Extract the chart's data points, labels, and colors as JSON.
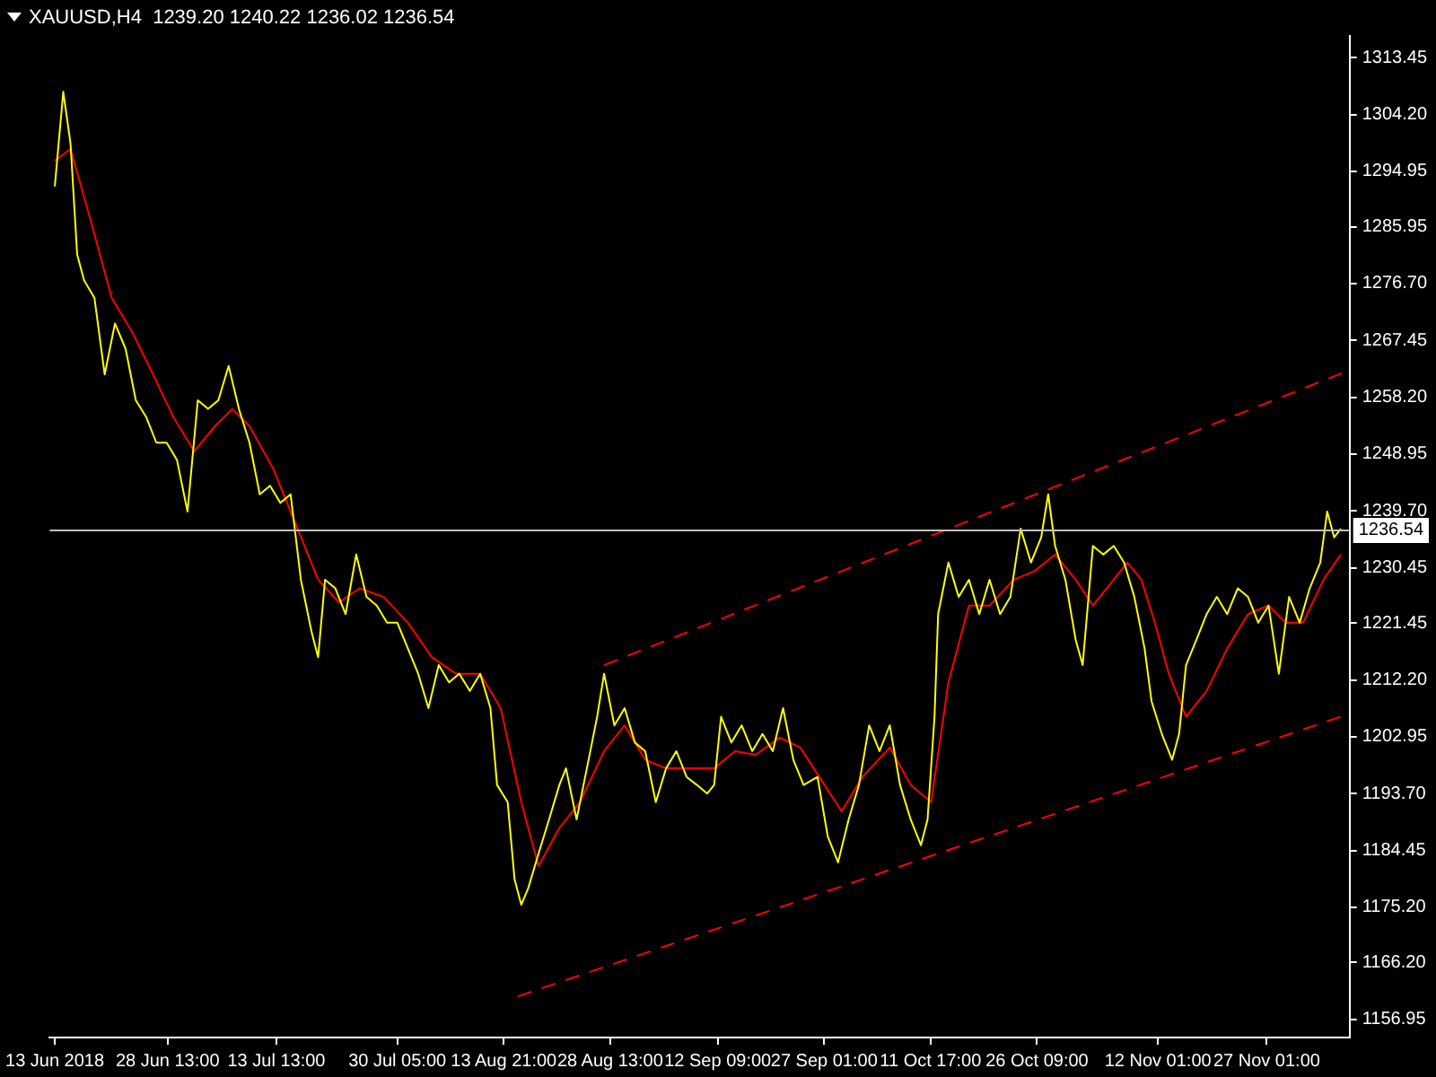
{
  "chart_data": {
    "type": "line",
    "title": "XAUUSD,H4  1239.20 1240.22 1236.02 1236.54",
    "xlim": [
      "2018-06-12T07:00",
      "2018-12-08T11:00"
    ],
    "xticks": [
      {
        "value": "2018-06-13T00:00",
        "label": "13 Jun 2018"
      },
      {
        "value": "2018-06-28T13:00",
        "label": "28 Jun 13:00"
      },
      {
        "value": "2018-07-13T13:00",
        "label": "13 Jul 13:00"
      },
      {
        "value": "2018-07-30T05:00",
        "label": "30 Jul 05:00"
      },
      {
        "value": "2018-08-13T21:00",
        "label": "13 Aug 21:00"
      },
      {
        "value": "2018-08-28T13:00",
        "label": "28 Aug 13:00"
      },
      {
        "value": "2018-09-12T09:00",
        "label": "12 Sep 09:00"
      },
      {
        "value": "2018-09-27T01:00",
        "label": "27 Sep 01:00"
      },
      {
        "value": "2018-10-11T17:00",
        "label": "11 Oct 17:00"
      },
      {
        "value": "2018-10-26T09:00",
        "label": "26 Oct 09:00"
      },
      {
        "value": "2018-11-12T01:00",
        "label": "12 Nov 01:00"
      },
      {
        "value": "2018-11-27T01:00",
        "label": "27 Nov 01:00"
      }
    ],
    "ylim": [
      1154.0,
      1317.0
    ],
    "yticks": [
      {
        "value": 1313.45,
        "label": "1313.45"
      },
      {
        "value": 1304.2,
        "label": "1304.20"
      },
      {
        "value": 1294.95,
        "label": "1294.95"
      },
      {
        "value": 1285.95,
        "label": "1285.95"
      },
      {
        "value": 1276.7,
        "label": "1276.70"
      },
      {
        "value": 1267.45,
        "label": "1267.45"
      },
      {
        "value": 1258.2,
        "label": "1258.20"
      },
      {
        "value": 1248.95,
        "label": "1248.95"
      },
      {
        "value": 1239.7,
        "label": "1239.70"
      },
      {
        "value": 1230.45,
        "label": "1230.45"
      },
      {
        "value": 1221.45,
        "label": "1221.45"
      },
      {
        "value": 1212.2,
        "label": "1212.20"
      },
      {
        "value": 1202.95,
        "label": "1202.95"
      },
      {
        "value": 1193.7,
        "label": "1193.70"
      },
      {
        "value": 1184.45,
        "label": "1184.45"
      },
      {
        "value": 1175.2,
        "label": "1175.20"
      },
      {
        "value": 1166.2,
        "label": "1166.20"
      },
      {
        "value": 1156.95,
        "label": "1156.95"
      }
    ],
    "grid": false,
    "legend": false,
    "marker": "none",
    "series": [
      {
        "color": "#ffff00",
        "x": [
          "2018-06-13T00:00",
          "2018-06-14T04:00",
          "2018-06-15T04:00",
          "2018-06-16T02:00",
          "2018-06-17T01:00",
          "2018-06-18T11:00",
          "2018-06-19T21:00",
          "2018-06-21T07:00",
          "2018-06-22T18:00",
          "2018-06-24T04:00",
          "2018-06-25T14:00",
          "2018-06-27T00:00",
          "2018-06-28T10:00",
          "2018-06-29T20:00",
          "2018-07-01T07:00",
          "2018-07-02T17:00",
          "2018-07-04T03:00",
          "2018-07-05T13:00",
          "2018-07-06T23:00",
          "2018-07-08T09:00",
          "2018-07-09T20:00",
          "2018-07-11T06:00",
          "2018-07-12T16:00",
          "2018-07-14T02:00",
          "2018-07-15T12:00",
          "2018-07-16T22:00",
          "2018-07-18T09:00",
          "2018-07-19T07:00",
          "2018-07-20T06:00",
          "2018-07-21T16:00",
          "2018-07-23T02:00",
          "2018-07-24T13:00",
          "2018-07-25T23:00",
          "2018-07-27T09:00",
          "2018-07-28T19:00",
          "2018-07-30T05:00",
          "2018-07-31T16:00",
          "2018-08-02T02:00",
          "2018-08-03T12:00",
          "2018-08-04T22:00",
          "2018-08-06T08:00",
          "2018-08-07T18:00",
          "2018-08-09T05:00",
          "2018-08-10T15:00",
          "2018-08-12T01:00",
          "2018-08-12T23:00",
          "2018-08-14T10:00",
          "2018-08-15T09:00",
          "2018-08-16T07:00",
          "2018-08-17T06:00",
          "2018-08-18T16:00",
          "2018-08-20T03:00",
          "2018-08-21T13:00",
          "2018-08-22T11:00",
          "2018-08-23T22:00",
          "2018-08-25T08:00",
          "2018-08-26T18:00",
          "2018-08-27T17:00",
          "2018-08-29T03:00",
          "2018-08-30T13:00",
          "2018-08-31T23:00",
          "2018-09-02T09:00",
          "2018-09-03T20:00",
          "2018-09-05T06:00",
          "2018-09-06T16:00",
          "2018-09-08T02:00",
          "2018-09-09T12:00",
          "2018-09-10T22:00",
          "2018-09-11T21:00",
          "2018-09-12T20:00",
          "2018-09-14T06:00",
          "2018-09-15T16:00",
          "2018-09-17T03:00",
          "2018-09-18T13:00",
          "2018-09-19T23:00",
          "2018-09-21T09:00",
          "2018-09-22T19:00",
          "2018-09-24T05:00",
          "2018-09-26T03:00",
          "2018-09-27T13:00",
          "2018-09-28T23:00",
          "2018-09-30T10:00",
          "2018-10-01T20:00",
          "2018-10-03T06:00",
          "2018-10-04T16:00",
          "2018-10-06T02:00",
          "2018-10-07T12:00",
          "2018-10-08T23:00",
          "2018-10-10T09:00",
          "2018-10-11T07:00",
          "2018-10-12T06:00",
          "2018-10-12T18:00",
          "2018-10-14T04:00",
          "2018-10-15T14:00",
          "2018-10-17T00:00",
          "2018-10-18T10:00",
          "2018-10-19T20:00",
          "2018-10-21T07:00",
          "2018-10-22T17:00",
          "2018-10-24T03:00",
          "2018-10-25T13:00",
          "2018-10-26T23:00",
          "2018-10-27T22:00",
          "2018-10-28T21:00",
          "2018-10-30T07:00",
          "2018-10-31T17:00",
          "2018-11-01T16:00",
          "2018-11-03T02:00",
          "2018-11-04T12:00",
          "2018-11-05T23:00",
          "2018-11-07T09:00",
          "2018-11-08T19:00",
          "2018-11-10T05:00",
          "2018-11-11T04:00",
          "2018-11-12T14:00",
          "2018-11-14T00:00",
          "2018-11-14T23:00",
          "2018-11-15T22:00",
          "2018-11-17T08:00",
          "2018-11-18T18:00",
          "2018-11-20T04:00",
          "2018-11-21T14:00",
          "2018-11-23T01:00",
          "2018-11-24T11:00",
          "2018-11-25T21:00",
          "2018-11-27T07:00",
          "2018-11-28T17:00",
          "2018-11-30T03:00",
          "2018-12-01T14:00",
          "2018-12-02T23:00",
          "2018-12-04T10:00",
          "2018-12-05T09:00",
          "2018-12-06T08:00",
          "2018-12-07T06:00"
        ],
        "values": [
          1292.5,
          1307.9,
          1299.5,
          1281.4,
          1277.2,
          1274.4,
          1261.9,
          1270.2,
          1266.1,
          1257.7,
          1255.0,
          1250.8,
          1250.8,
          1248.0,
          1239.6,
          1257.7,
          1256.3,
          1257.7,
          1263.3,
          1256.3,
          1250.8,
          1242.4,
          1243.8,
          1241.0,
          1242.4,
          1228.5,
          1220.1,
          1215.9,
          1228.5,
          1227.1,
          1222.9,
          1232.6,
          1225.7,
          1224.3,
          1221.5,
          1221.5,
          1217.3,
          1213.2,
          1207.6,
          1214.6,
          1211.8,
          1213.2,
          1210.4,
          1213.2,
          1207.6,
          1195.1,
          1192.3,
          1179.7,
          1175.6,
          1178.3,
          1183.9,
          1189.5,
          1195.1,
          1197.8,
          1189.5,
          1197.8,
          1206.2,
          1213.2,
          1204.8,
          1207.6,
          1202.0,
          1200.6,
          1192.3,
          1197.8,
          1200.6,
          1196.4,
          1195.1,
          1193.7,
          1195.1,
          1206.2,
          1202.0,
          1204.8,
          1200.6,
          1203.4,
          1200.6,
          1207.6,
          1199.2,
          1195.1,
          1196.4,
          1186.7,
          1182.5,
          1189.5,
          1195.1,
          1204.8,
          1200.6,
          1204.8,
          1195.1,
          1189.5,
          1185.3,
          1189.5,
          1206.2,
          1222.9,
          1231.3,
          1225.7,
          1228.5,
          1222.9,
          1228.5,
          1222.9,
          1225.7,
          1236.8,
          1231.3,
          1235.4,
          1242.4,
          1234.0,
          1228.5,
          1218.7,
          1214.6,
          1234.0,
          1232.6,
          1234.0,
          1231.3,
          1225.7,
          1217.3,
          1208.7,
          1203.4,
          1199.2,
          1203.4,
          1214.6,
          1218.7,
          1222.9,
          1225.7,
          1222.9,
          1227.1,
          1225.7,
          1221.5,
          1224.3,
          1213.2,
          1225.7,
          1221.5,
          1227.1,
          1231.3,
          1239.6,
          1235.4,
          1236.8
        ]
      },
      {
        "color": "#ff0000",
        "x": [
          "2018-06-13T00:00",
          "2018-06-15T04:00",
          "2018-06-17T23:00",
          "2018-06-20T20:00",
          "2018-06-23T16:00",
          "2018-06-26T13:00",
          "2018-06-29T09:00",
          "2018-07-02T05:00",
          "2018-07-05T02:00",
          "2018-07-07T11:00",
          "2018-07-09T20:00",
          "2018-07-13T03:00",
          "2018-07-16T11:00",
          "2018-07-19T07:00",
          "2018-07-22T04:00",
          "2018-07-25T00:00",
          "2018-07-28T08:00",
          "2018-07-31T16:00",
          "2018-08-03T23:00",
          "2018-08-07T07:00",
          "2018-08-10T15:00",
          "2018-08-13T11:00",
          "2018-08-16T07:00",
          "2018-08-18T16:00",
          "2018-08-21T13:00",
          "2018-08-24T09:00",
          "2018-08-27T17:00",
          "2018-08-30T13:00",
          "2018-09-02T09:00",
          "2018-09-05T06:00",
          "2018-09-08T14:00",
          "2018-09-11T21:00",
          "2018-09-14T18:00",
          "2018-09-17T14:00",
          "2018-09-20T22:00",
          "2018-09-23T18:00",
          "2018-09-27T02:00",
          "2018-09-29T11:00",
          "2018-10-02T07:00",
          "2018-10-06T02:00",
          "2018-10-08T23:00",
          "2018-10-11T19:00",
          "2018-10-14T04:00",
          "2018-10-17T00:00",
          "2018-10-19T20:00",
          "2018-10-23T04:00",
          "2018-10-26T01:00",
          "2018-10-28T21:00",
          "2018-10-31T17:00",
          "2018-11-03T02:00",
          "2018-11-07T20:00",
          "2018-11-09T18:00",
          "2018-11-11T15:00",
          "2018-11-13T13:00",
          "2018-11-15T22:00",
          "2018-11-18T18:00",
          "2018-11-21T14:00",
          "2018-11-24T11:00",
          "2018-11-27T07:00",
          "2018-11-29T16:00",
          "2018-12-02T01:00",
          "2018-12-04T21:00",
          "2018-12-07T06:00"
        ],
        "values": [
          1296.7,
          1298.6,
          1286.9,
          1274.4,
          1268.8,
          1261.9,
          1254.9,
          1249.4,
          1253.5,
          1256.3,
          1253.5,
          1246.5,
          1236.8,
          1228.5,
          1224.8,
          1227.1,
          1225.7,
          1221.5,
          1215.9,
          1213.2,
          1213.2,
          1207.6,
          1192.3,
          1181.9,
          1188.1,
          1192.3,
          1200.6,
          1204.8,
          1199.2,
          1197.8,
          1197.8,
          1197.8,
          1200.6,
          1200.0,
          1202.8,
          1201.2,
          1195.1,
          1190.8,
          1196.4,
          1201.2,
          1195.1,
          1192.3,
          1211.8,
          1224.3,
          1224.3,
          1228.5,
          1229.9,
          1232.6,
          1228.5,
          1224.3,
          1231.3,
          1228.5,
          1221.5,
          1213.2,
          1206.2,
          1210.4,
          1217.3,
          1222.9,
          1224.3,
          1221.5,
          1221.5,
          1228.5,
          1232.6
        ]
      },
      {
        "color": "#ff0000",
        "line_style": "dashed",
        "x": [
          "2018-08-27T17:00",
          "2018-12-08T11:00"
        ],
        "values": [
          1214.6,
          1262.6
        ]
      },
      {
        "color": "#ff0000",
        "line_style": "dashed",
        "x": [
          "2018-08-15T20:00",
          "2018-12-08T11:00"
        ],
        "values": [
          1160.7,
          1206.7
        ]
      }
    ],
    "ref_lines": [
      {
        "axis": "y",
        "value": 1236.54,
        "label": "1236.54",
        "color": "#c0c0c0"
      }
    ]
  }
}
